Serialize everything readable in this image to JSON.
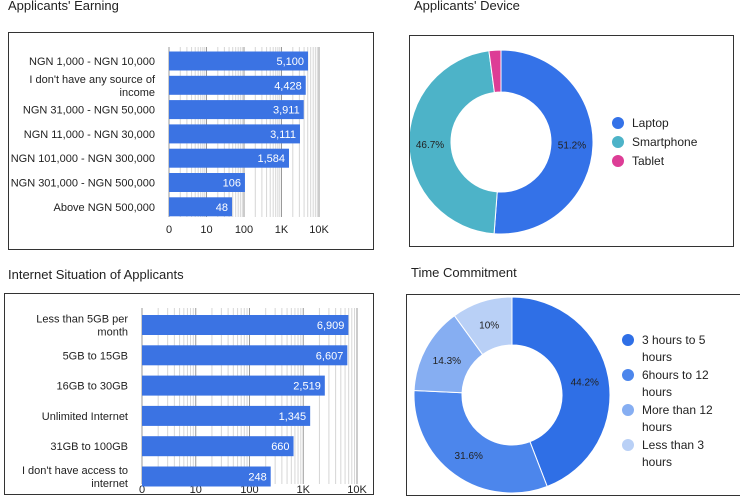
{
  "charts": [
    {
      "type": "bar",
      "orientation": "horizontal",
      "scale": "log",
      "title": "Applicants' Earning",
      "categories": [
        [
          "NGN 1,000 - NGN 10,000"
        ],
        [
          "I don't have any source of",
          "income"
        ],
        [
          "NGN 31,000 - NGN 50,000"
        ],
        [
          "NGN 11,000 - NGN 30,000"
        ],
        [
          "NGN 101,000 - NGN 300,000"
        ],
        [
          "NGN 301,000 - NGN 500,000"
        ],
        [
          "Above NGN 500,000"
        ]
      ],
      "values": [
        5100,
        4428,
        3911,
        3111,
        1584,
        106,
        48
      ],
      "value_labels": [
        "5,100",
        "4,428",
        "3,911",
        "3,111",
        "1,584",
        "106",
        "48"
      ],
      "ticks": [
        {
          "v": 1,
          "label": "0"
        },
        {
          "v": 10,
          "label": "10"
        },
        {
          "v": 100,
          "label": "100"
        },
        {
          "v": 1000,
          "label": "1K"
        },
        {
          "v": 10000,
          "label": "10K"
        }
      ],
      "color": "#3b73e3"
    },
    {
      "type": "pie",
      "donut": true,
      "title": "Applicants' Device",
      "labels": [
        "Laptop",
        "Smartphone",
        "Tablet"
      ],
      "values": [
        51.2,
        46.7,
        2.1
      ],
      "value_labels": [
        "51.2%",
        "46.7%",
        ""
      ],
      "colors": [
        "#3472e8",
        "#4db3c8",
        "#dd3d96"
      ]
    },
    {
      "type": "bar",
      "orientation": "horizontal",
      "scale": "log",
      "title": "Internet Situation of Applicants",
      "categories": [
        [
          "Less than 5GB per",
          "month"
        ],
        [
          "5GB to 15GB"
        ],
        [
          "16GB to 30GB"
        ],
        [
          "Unlimited Internet"
        ],
        [
          "31GB to 100GB"
        ],
        [
          "I don't have access to",
          "internet"
        ]
      ],
      "values": [
        6909,
        6607,
        2519,
        1345,
        660,
        248
      ],
      "value_labels": [
        "6,909",
        "6,607",
        "2,519",
        "1,345",
        "660",
        "248"
      ],
      "ticks": [
        {
          "v": 1,
          "label": "0"
        },
        {
          "v": 10,
          "label": "10"
        },
        {
          "v": 100,
          "label": "100"
        },
        {
          "v": 1000,
          "label": "1K"
        },
        {
          "v": 10000,
          "label": "10K"
        }
      ],
      "color": "#3b73e3"
    },
    {
      "type": "pie",
      "donut": true,
      "title": "Time Commitment",
      "labels": [
        [
          "3 hours to 5",
          "hours"
        ],
        [
          "6hours to 12",
          "hours"
        ],
        [
          "More than 12",
          "hours"
        ],
        [
          "Less than 3",
          "hours"
        ]
      ],
      "values": [
        44.2,
        31.6,
        14.3,
        10
      ],
      "value_labels": [
        "44.2%",
        "31.6%",
        "14.3%",
        "10%"
      ],
      "colors": [
        "#2f6fe6",
        "#4c86ec",
        "#86aef2",
        "#b9d0f6"
      ],
      "label_colors": [
        "#222",
        "#222",
        "#222",
        "#222"
      ]
    }
  ]
}
